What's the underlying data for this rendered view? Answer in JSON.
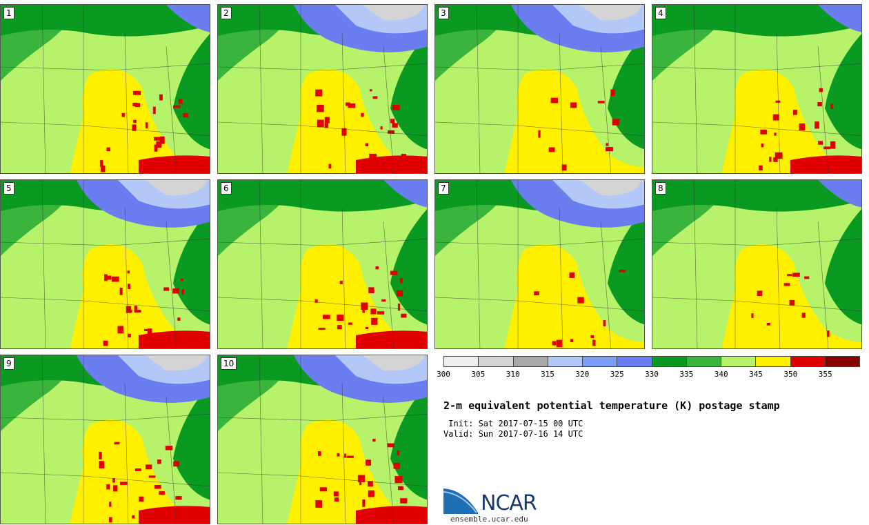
{
  "panels": [
    {
      "label": "1",
      "heavy_red": true,
      "blue_north": false
    },
    {
      "label": "2",
      "heavy_red": true,
      "blue_north": true
    },
    {
      "label": "3",
      "heavy_red": false,
      "blue_north": true
    },
    {
      "label": "4",
      "heavy_red": true,
      "blue_north": false
    },
    {
      "label": "5",
      "heavy_red": true,
      "blue_north": true
    },
    {
      "label": "6",
      "heavy_red": true,
      "blue_north": false
    },
    {
      "label": "7",
      "heavy_red": false,
      "blue_north": true
    },
    {
      "label": "8",
      "heavy_red": false,
      "blue_north": false
    },
    {
      "label": "9",
      "heavy_red": true,
      "blue_north": true
    },
    {
      "label": "10",
      "heavy_red": true,
      "blue_north": true
    }
  ],
  "colorbar": {
    "colors": [
      "#eeeeee",
      "#d4d4d4",
      "#a8a8a8",
      "#b4c8f8",
      "#7c9ef4",
      "#6a7ef0",
      "#0a9a22",
      "#3ab43c",
      "#b6f26a",
      "#fff000",
      "#e00000",
      "#860000"
    ],
    "ticks": [
      "300",
      "305",
      "310",
      "315",
      "320",
      "325",
      "330",
      "335",
      "340",
      "345",
      "350",
      "355"
    ]
  },
  "title": "2-m equivalent potential temperature (K) postage stamp",
  "init": " Init: Sat 2017-07-15 00 UTC",
  "valid": "Valid: Sun 2017-07-16 14 UTC",
  "logo": {
    "text": "NCAR",
    "url": "ensemble.ucar.edu"
  }
}
